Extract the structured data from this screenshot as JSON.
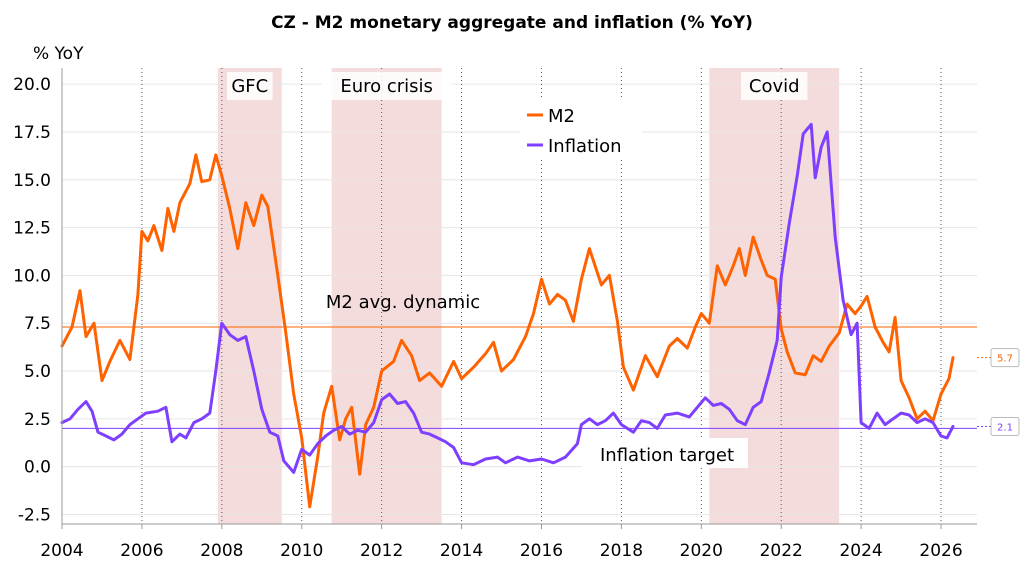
{
  "chart_data": {
    "type": "line",
    "title": "CZ - M2 monetary aggregate and inflation (% YoY)",
    "ylabel": "% YoY",
    "xlim": [
      2004,
      2026.9
    ],
    "ylim": [
      -3,
      21
    ],
    "y_ticks": [
      "20.0",
      "17.5",
      "15.0",
      "12.5",
      "10.0",
      "7.5",
      "5.0",
      "2.5",
      "0.0",
      "-2.5"
    ],
    "y_tick_values": [
      20,
      17.5,
      15,
      12.5,
      10,
      7.5,
      5,
      2.5,
      0,
      -2.5
    ],
    "x_ticks": [
      "2004",
      "2006",
      "2008",
      "2010",
      "2012",
      "2014",
      "2016",
      "2018",
      "2020",
      "2022",
      "2024",
      "2026"
    ],
    "x_tick_values": [
      2004,
      2006,
      2008,
      2010,
      2012,
      2014,
      2016,
      2018,
      2020,
      2022,
      2024,
      2026
    ],
    "shaded_periods": [
      {
        "label": "GFC",
        "start": 2007.9,
        "end": 2009.5
      },
      {
        "label": "Euro crisis",
        "start": 2010.75,
        "end": 2013.5
      },
      {
        "label": "Covid",
        "start": 2020.2,
        "end": 2023.45
      }
    ],
    "reference_lines": [
      {
        "label": "M2 avg. dynamic",
        "value": 7.3,
        "color": "#ff6200"
      },
      {
        "label": "Inflation target",
        "value": 2.0,
        "color": "#7f3fff"
      }
    ],
    "series": [
      {
        "name": "M2",
        "color": "#ff6200",
        "end_label": "5.7",
        "points": [
          [
            2004.0,
            6.3
          ],
          [
            2004.25,
            7.3
          ],
          [
            2004.45,
            9.2
          ],
          [
            2004.6,
            6.8
          ],
          [
            2004.8,
            7.5
          ],
          [
            2005.0,
            4.5
          ],
          [
            2005.2,
            5.5
          ],
          [
            2005.45,
            6.6
          ],
          [
            2005.7,
            5.6
          ],
          [
            2005.9,
            9.0
          ],
          [
            2006.0,
            12.3
          ],
          [
            2006.15,
            11.8
          ],
          [
            2006.3,
            12.6
          ],
          [
            2006.5,
            11.3
          ],
          [
            2006.65,
            13.5
          ],
          [
            2006.8,
            12.3
          ],
          [
            2006.95,
            13.8
          ],
          [
            2007.2,
            14.8
          ],
          [
            2007.35,
            16.3
          ],
          [
            2007.5,
            14.9
          ],
          [
            2007.7,
            15.0
          ],
          [
            2007.85,
            16.3
          ],
          [
            2008.0,
            15.2
          ],
          [
            2008.2,
            13.5
          ],
          [
            2008.4,
            11.4
          ],
          [
            2008.6,
            13.8
          ],
          [
            2008.8,
            12.6
          ],
          [
            2009.0,
            14.2
          ],
          [
            2009.15,
            13.6
          ],
          [
            2009.4,
            10.0
          ],
          [
            2009.6,
            7.0
          ],
          [
            2009.8,
            3.8
          ],
          [
            2010.0,
            1.5
          ],
          [
            2010.2,
            -2.1
          ],
          [
            2010.4,
            0.5
          ],
          [
            2010.55,
            2.8
          ],
          [
            2010.75,
            4.2
          ],
          [
            2010.95,
            1.4
          ],
          [
            2011.1,
            2.5
          ],
          [
            2011.25,
            3.1
          ],
          [
            2011.45,
            -0.4
          ],
          [
            2011.6,
            2.2
          ],
          [
            2011.8,
            3.1
          ],
          [
            2012.0,
            5.0
          ],
          [
            2012.3,
            5.5
          ],
          [
            2012.5,
            6.6
          ],
          [
            2012.75,
            5.8
          ],
          [
            2012.95,
            4.5
          ],
          [
            2013.2,
            4.9
          ],
          [
            2013.5,
            4.2
          ],
          [
            2013.8,
            5.5
          ],
          [
            2014.0,
            4.6
          ],
          [
            2014.3,
            5.2
          ],
          [
            2014.6,
            5.9
          ],
          [
            2014.8,
            6.5
          ],
          [
            2015.0,
            5.0
          ],
          [
            2015.3,
            5.6
          ],
          [
            2015.6,
            6.8
          ],
          [
            2015.8,
            8.0
          ],
          [
            2016.0,
            9.8
          ],
          [
            2016.2,
            8.5
          ],
          [
            2016.4,
            9.0
          ],
          [
            2016.6,
            8.7
          ],
          [
            2016.8,
            7.6
          ],
          [
            2017.0,
            9.8
          ],
          [
            2017.2,
            11.4
          ],
          [
            2017.5,
            9.5
          ],
          [
            2017.7,
            10.0
          ],
          [
            2017.9,
            7.6
          ],
          [
            2018.05,
            5.2
          ],
          [
            2018.3,
            4.0
          ],
          [
            2018.6,
            5.8
          ],
          [
            2018.9,
            4.7
          ],
          [
            2019.2,
            6.3
          ],
          [
            2019.4,
            6.7
          ],
          [
            2019.65,
            6.2
          ],
          [
            2019.85,
            7.3
          ],
          [
            2020.0,
            8.0
          ],
          [
            2020.2,
            7.5
          ],
          [
            2020.4,
            10.5
          ],
          [
            2020.6,
            9.5
          ],
          [
            2020.8,
            10.5
          ],
          [
            2020.95,
            11.4
          ],
          [
            2021.1,
            10.0
          ],
          [
            2021.3,
            12.0
          ],
          [
            2021.5,
            10.8
          ],
          [
            2021.65,
            10.0
          ],
          [
            2021.85,
            9.8
          ],
          [
            2022.0,
            7.2
          ],
          [
            2022.15,
            6.0
          ],
          [
            2022.35,
            4.9
          ],
          [
            2022.6,
            4.8
          ],
          [
            2022.8,
            5.8
          ],
          [
            2023.0,
            5.5
          ],
          [
            2023.2,
            6.3
          ],
          [
            2023.45,
            7.0
          ],
          [
            2023.65,
            8.5
          ],
          [
            2023.85,
            8.0
          ],
          [
            2024.0,
            8.4
          ],
          [
            2024.15,
            8.9
          ],
          [
            2024.35,
            7.3
          ],
          [
            2024.55,
            6.5
          ],
          [
            2024.7,
            6.0
          ],
          [
            2024.85,
            7.8
          ],
          [
            2025.0,
            4.5
          ],
          [
            2025.2,
            3.6
          ],
          [
            2025.4,
            2.5
          ],
          [
            2025.6,
            2.9
          ],
          [
            2025.8,
            2.4
          ],
          [
            2026.0,
            3.8
          ],
          [
            2026.2,
            4.6
          ],
          [
            2026.3,
            5.7
          ]
        ]
      },
      {
        "name": "Inflation",
        "color": "#7f3fff",
        "end_label": "2.1",
        "points": [
          [
            2004.0,
            2.3
          ],
          [
            2004.2,
            2.5
          ],
          [
            2004.4,
            3.0
          ],
          [
            2004.6,
            3.4
          ],
          [
            2004.75,
            2.9
          ],
          [
            2004.9,
            1.8
          ],
          [
            2005.1,
            1.6
          ],
          [
            2005.3,
            1.4
          ],
          [
            2005.5,
            1.7
          ],
          [
            2005.7,
            2.2
          ],
          [
            2005.9,
            2.5
          ],
          [
            2006.1,
            2.8
          ],
          [
            2006.4,
            2.9
          ],
          [
            2006.6,
            3.1
          ],
          [
            2006.75,
            1.3
          ],
          [
            2006.95,
            1.7
          ],
          [
            2007.1,
            1.5
          ],
          [
            2007.3,
            2.3
          ],
          [
            2007.5,
            2.5
          ],
          [
            2007.7,
            2.8
          ],
          [
            2007.85,
            5.0
          ],
          [
            2008.0,
            7.5
          ],
          [
            2008.2,
            6.9
          ],
          [
            2008.4,
            6.6
          ],
          [
            2008.6,
            6.8
          ],
          [
            2008.8,
            5.0
          ],
          [
            2009.0,
            3.0
          ],
          [
            2009.2,
            1.8
          ],
          [
            2009.4,
            1.6
          ],
          [
            2009.55,
            0.3
          ],
          [
            2009.8,
            -0.3
          ],
          [
            2010.0,
            0.9
          ],
          [
            2010.2,
            0.6
          ],
          [
            2010.4,
            1.2
          ],
          [
            2010.6,
            1.6
          ],
          [
            2010.8,
            1.9
          ],
          [
            2011.0,
            2.1
          ],
          [
            2011.2,
            1.7
          ],
          [
            2011.4,
            1.9
          ],
          [
            2011.6,
            1.8
          ],
          [
            2011.8,
            2.3
          ],
          [
            2012.0,
            3.5
          ],
          [
            2012.2,
            3.8
          ],
          [
            2012.4,
            3.3
          ],
          [
            2012.6,
            3.4
          ],
          [
            2012.8,
            2.8
          ],
          [
            2013.0,
            1.8
          ],
          [
            2013.2,
            1.7
          ],
          [
            2013.4,
            1.5
          ],
          [
            2013.6,
            1.3
          ],
          [
            2013.8,
            1.0
          ],
          [
            2014.0,
            0.2
          ],
          [
            2014.3,
            0.1
          ],
          [
            2014.6,
            0.4
          ],
          [
            2014.9,
            0.5
          ],
          [
            2015.1,
            0.2
          ],
          [
            2015.4,
            0.5
          ],
          [
            2015.7,
            0.3
          ],
          [
            2016.0,
            0.4
          ],
          [
            2016.3,
            0.2
          ],
          [
            2016.6,
            0.5
          ],
          [
            2016.9,
            1.2
          ],
          [
            2017.0,
            2.2
          ],
          [
            2017.2,
            2.5
          ],
          [
            2017.4,
            2.2
          ],
          [
            2017.6,
            2.4
          ],
          [
            2017.8,
            2.8
          ],
          [
            2018.0,
            2.2
          ],
          [
            2018.3,
            1.8
          ],
          [
            2018.5,
            2.4
          ],
          [
            2018.7,
            2.3
          ],
          [
            2018.9,
            2.0
          ],
          [
            2019.1,
            2.7
          ],
          [
            2019.4,
            2.8
          ],
          [
            2019.7,
            2.6
          ],
          [
            2019.9,
            3.1
          ],
          [
            2020.1,
            3.6
          ],
          [
            2020.3,
            3.2
          ],
          [
            2020.5,
            3.3
          ],
          [
            2020.7,
            3.0
          ],
          [
            2020.9,
            2.4
          ],
          [
            2021.1,
            2.2
          ],
          [
            2021.3,
            3.1
          ],
          [
            2021.5,
            3.4
          ],
          [
            2021.7,
            4.9
          ],
          [
            2021.9,
            6.6
          ],
          [
            2022.0,
            9.9
          ],
          [
            2022.2,
            12.7
          ],
          [
            2022.4,
            15.2
          ],
          [
            2022.55,
            17.4
          ],
          [
            2022.75,
            17.9
          ],
          [
            2022.85,
            15.1
          ],
          [
            2023.0,
            16.7
          ],
          [
            2023.15,
            17.5
          ],
          [
            2023.35,
            12.0
          ],
          [
            2023.55,
            8.7
          ],
          [
            2023.75,
            6.9
          ],
          [
            2023.9,
            7.5
          ],
          [
            2024.0,
            2.3
          ],
          [
            2024.2,
            2.0
          ],
          [
            2024.4,
            2.8
          ],
          [
            2024.6,
            2.2
          ],
          [
            2024.8,
            2.5
          ],
          [
            2025.0,
            2.8
          ],
          [
            2025.2,
            2.7
          ],
          [
            2025.4,
            2.3
          ],
          [
            2025.6,
            2.5
          ],
          [
            2025.8,
            2.3
          ],
          [
            2026.0,
            1.6
          ],
          [
            2026.15,
            1.5
          ],
          [
            2026.3,
            2.1
          ]
        ]
      }
    ]
  }
}
